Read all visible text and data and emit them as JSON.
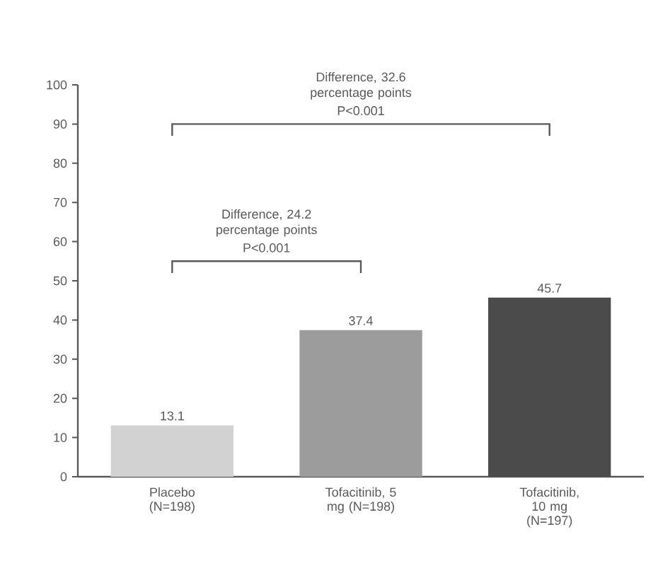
{
  "chart_data": {
    "type": "bar",
    "categories": [
      "Placebo (N=198)",
      "Tofacitinib, 5 mg (N=198)",
      "Tofacitinib, 10 mg (N=197)"
    ],
    "values": [
      13.1,
      37.4,
      45.7
    ],
    "colors": [
      "#d2d2d2",
      "#9c9c9c",
      "#4b4b4b"
    ],
    "ylim": [
      0,
      100
    ],
    "yticks": [
      0,
      10,
      20,
      30,
      40,
      50,
      60,
      70,
      80,
      90,
      100
    ],
    "data_labels": true,
    "grid": false,
    "annotations": [
      "Difference, 24.2 percentage points",
      "P<0.001",
      "Difference, 32.6 percentage points",
      "P<0.001"
    ]
  }
}
